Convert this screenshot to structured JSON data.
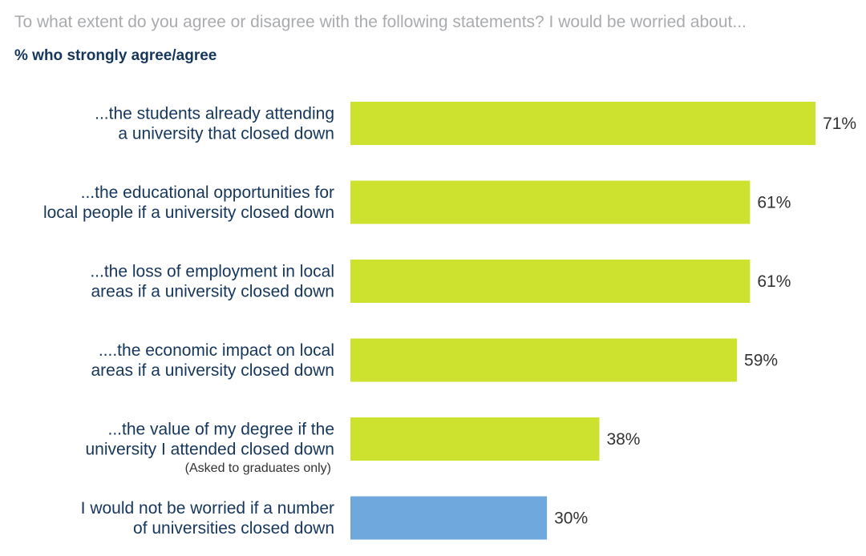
{
  "header": {
    "question": "To what extent do you agree or disagree with the following statements? I would be worried about...",
    "subtitle": "% who strongly agree/agree"
  },
  "colors": {
    "primary_bar": "#cde22e",
    "highlight_bar": "#6fa8dc",
    "label_text": "#16365c",
    "note_text": "#333333"
  },
  "chart_data": {
    "type": "bar",
    "orientation": "horizontal",
    "title": "",
    "xlabel": "",
    "ylabel": "",
    "xlim": [
      0,
      100
    ],
    "grid": false,
    "categories": [
      [
        "...the students already attending",
        "a university that closed down"
      ],
      [
        "...the educational opportunities for",
        "local people if a university closed down"
      ],
      [
        "...the loss of employment in local",
        "areas if a university closed down"
      ],
      [
        "....the economic impact on local",
        "areas if a university closed down"
      ],
      [
        "...the value of my degree if the",
        "university I attended closed down"
      ],
      [
        "I would not be worried if a number",
        "of universities closed down"
      ]
    ],
    "notes": [
      "",
      "",
      "",
      "",
      "(Asked to graduates only)",
      ""
    ],
    "values": [
      71,
      61,
      61,
      59,
      38,
      30
    ],
    "value_labels": [
      "71%",
      "61%",
      "61%",
      "59%",
      "38%",
      "30%"
    ],
    "bar_colors": [
      "#cde22e",
      "#cde22e",
      "#cde22e",
      "#cde22e",
      "#cde22e",
      "#6fa8dc"
    ]
  }
}
